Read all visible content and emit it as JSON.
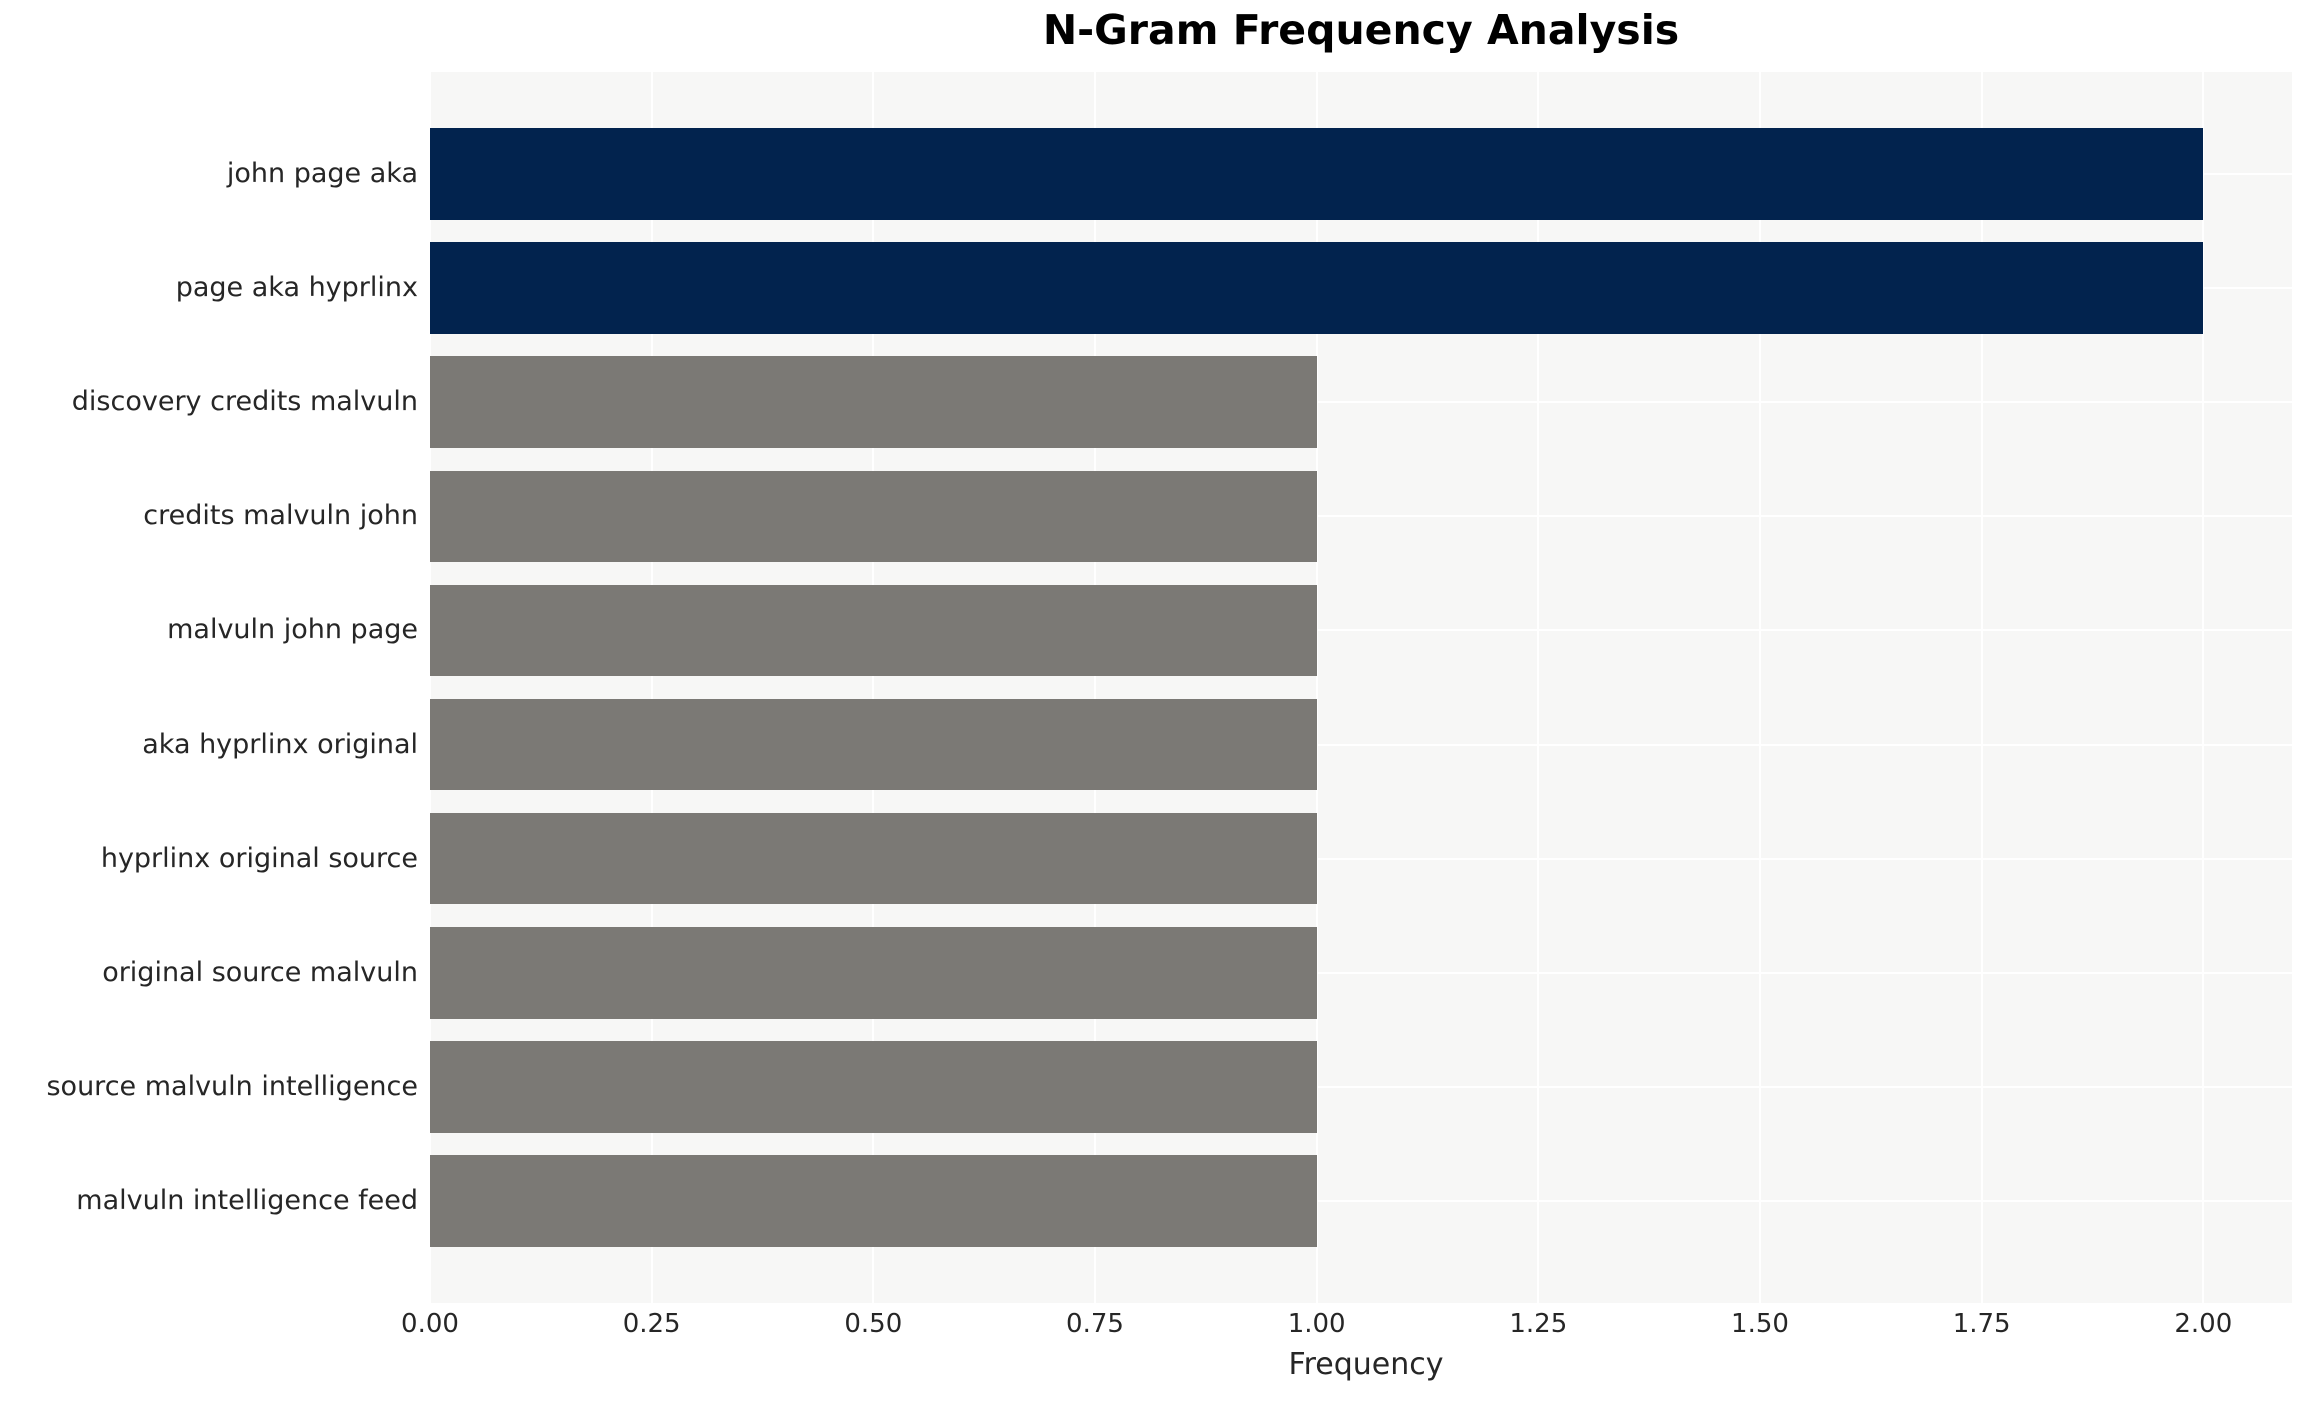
{
  "chart_data": {
    "type": "bar",
    "orientation": "horizontal",
    "title": "N-Gram Frequency Analysis",
    "xlabel": "Frequency",
    "ylabel": "",
    "categories": [
      "john page aka",
      "page aka hyprlinx",
      "discovery credits malvuln",
      "credits malvuln john",
      "malvuln john page",
      "aka hyprlinx original",
      "hyprlinx original source",
      "original source malvuln",
      "source malvuln intelligence",
      "malvuln intelligence feed"
    ],
    "values": [
      2,
      2,
      1,
      1,
      1,
      1,
      1,
      1,
      1,
      1
    ],
    "bar_colors": [
      "#02234e",
      "#02234e",
      "#7b7975",
      "#7b7975",
      "#7b7975",
      "#7b7975",
      "#7b7975",
      "#7b7975",
      "#7b7975",
      "#7b7975"
    ],
    "xlim": [
      0,
      2.1
    ],
    "xticks": [
      0.0,
      0.25,
      0.5,
      0.75,
      1.0,
      1.25,
      1.5,
      1.75,
      2.0
    ],
    "xtick_labels": [
      "0.00",
      "0.25",
      "0.50",
      "0.75",
      "1.00",
      "1.25",
      "1.50",
      "1.75",
      "2.00"
    ],
    "grid": "on",
    "legend": "none"
  },
  "colors": {
    "highlight_bar": "#02234e",
    "default_bar": "#7b7975",
    "plot_background": "#f7f7f6",
    "page_background": "#ffffff",
    "gridline": "#ffffff",
    "text": "#262626",
    "title_text": "#000000"
  }
}
